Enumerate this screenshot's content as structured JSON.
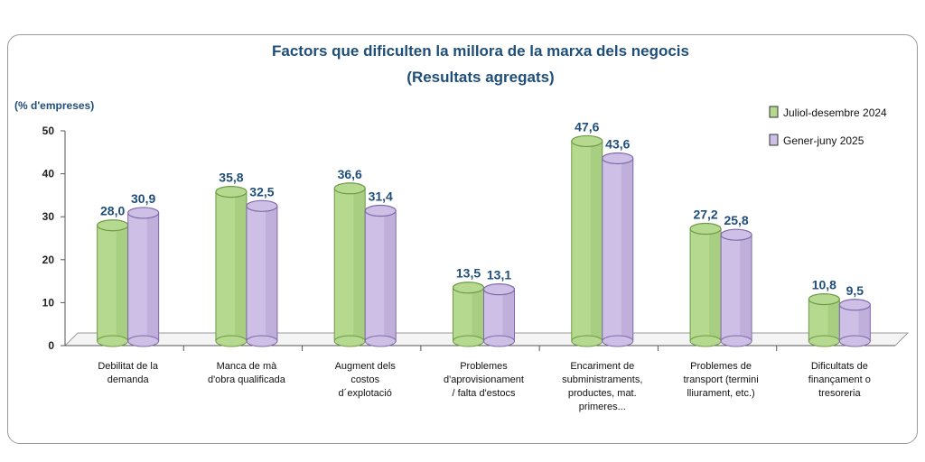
{
  "chart_data": {
    "type": "bar",
    "title": "Factors que dificulten la millora de la marxa dels negocis",
    "subtitle": "(Resultats agregats)",
    "ylabel": "(% d'empreses)",
    "ylim": [
      0,
      50
    ],
    "yticks": [
      "0",
      "10",
      "20",
      "30",
      "40",
      "50"
    ],
    "categories": [
      [
        "Debilitat de la",
        "demanda"
      ],
      [
        "Manca de mà",
        "d'obra qualificada"
      ],
      [
        "Augment dels",
        "costos",
        "d´explotació"
      ],
      [
        "Problemes",
        "d'aprovisionament",
        "/ falta d'estocs"
      ],
      [
        "Encariment de",
        "subministraments,",
        "productes, mat.",
        "primeres..."
      ],
      [
        "Problemes de",
        "transport (termini",
        "lliurament, etc.)"
      ],
      [
        "Dificultats de",
        "finançament o",
        "tresoreria"
      ]
    ],
    "series": [
      {
        "name": "Juliol-desembre 2024",
        "values": [
          28.0,
          35.8,
          36.6,
          13.5,
          47.6,
          27.2,
          10.8
        ],
        "labels": [
          "28,0",
          "35,8",
          "36,6",
          "13,5",
          "47,6",
          "27,2",
          "10,8"
        ],
        "color": "#b5d98f",
        "dark": "#6e9a45"
      },
      {
        "name": "Gener-juny 2025",
        "values": [
          30.9,
          32.5,
          31.4,
          13.1,
          43.6,
          25.8,
          9.5
        ],
        "labels": [
          "30,9",
          "32,5",
          "31,4",
          "13,1",
          "43,6",
          "25,8",
          "9,5"
        ],
        "color": "#cdbfe6",
        "dark": "#7f6aa8"
      }
    ],
    "legend_position": "top-right"
  }
}
